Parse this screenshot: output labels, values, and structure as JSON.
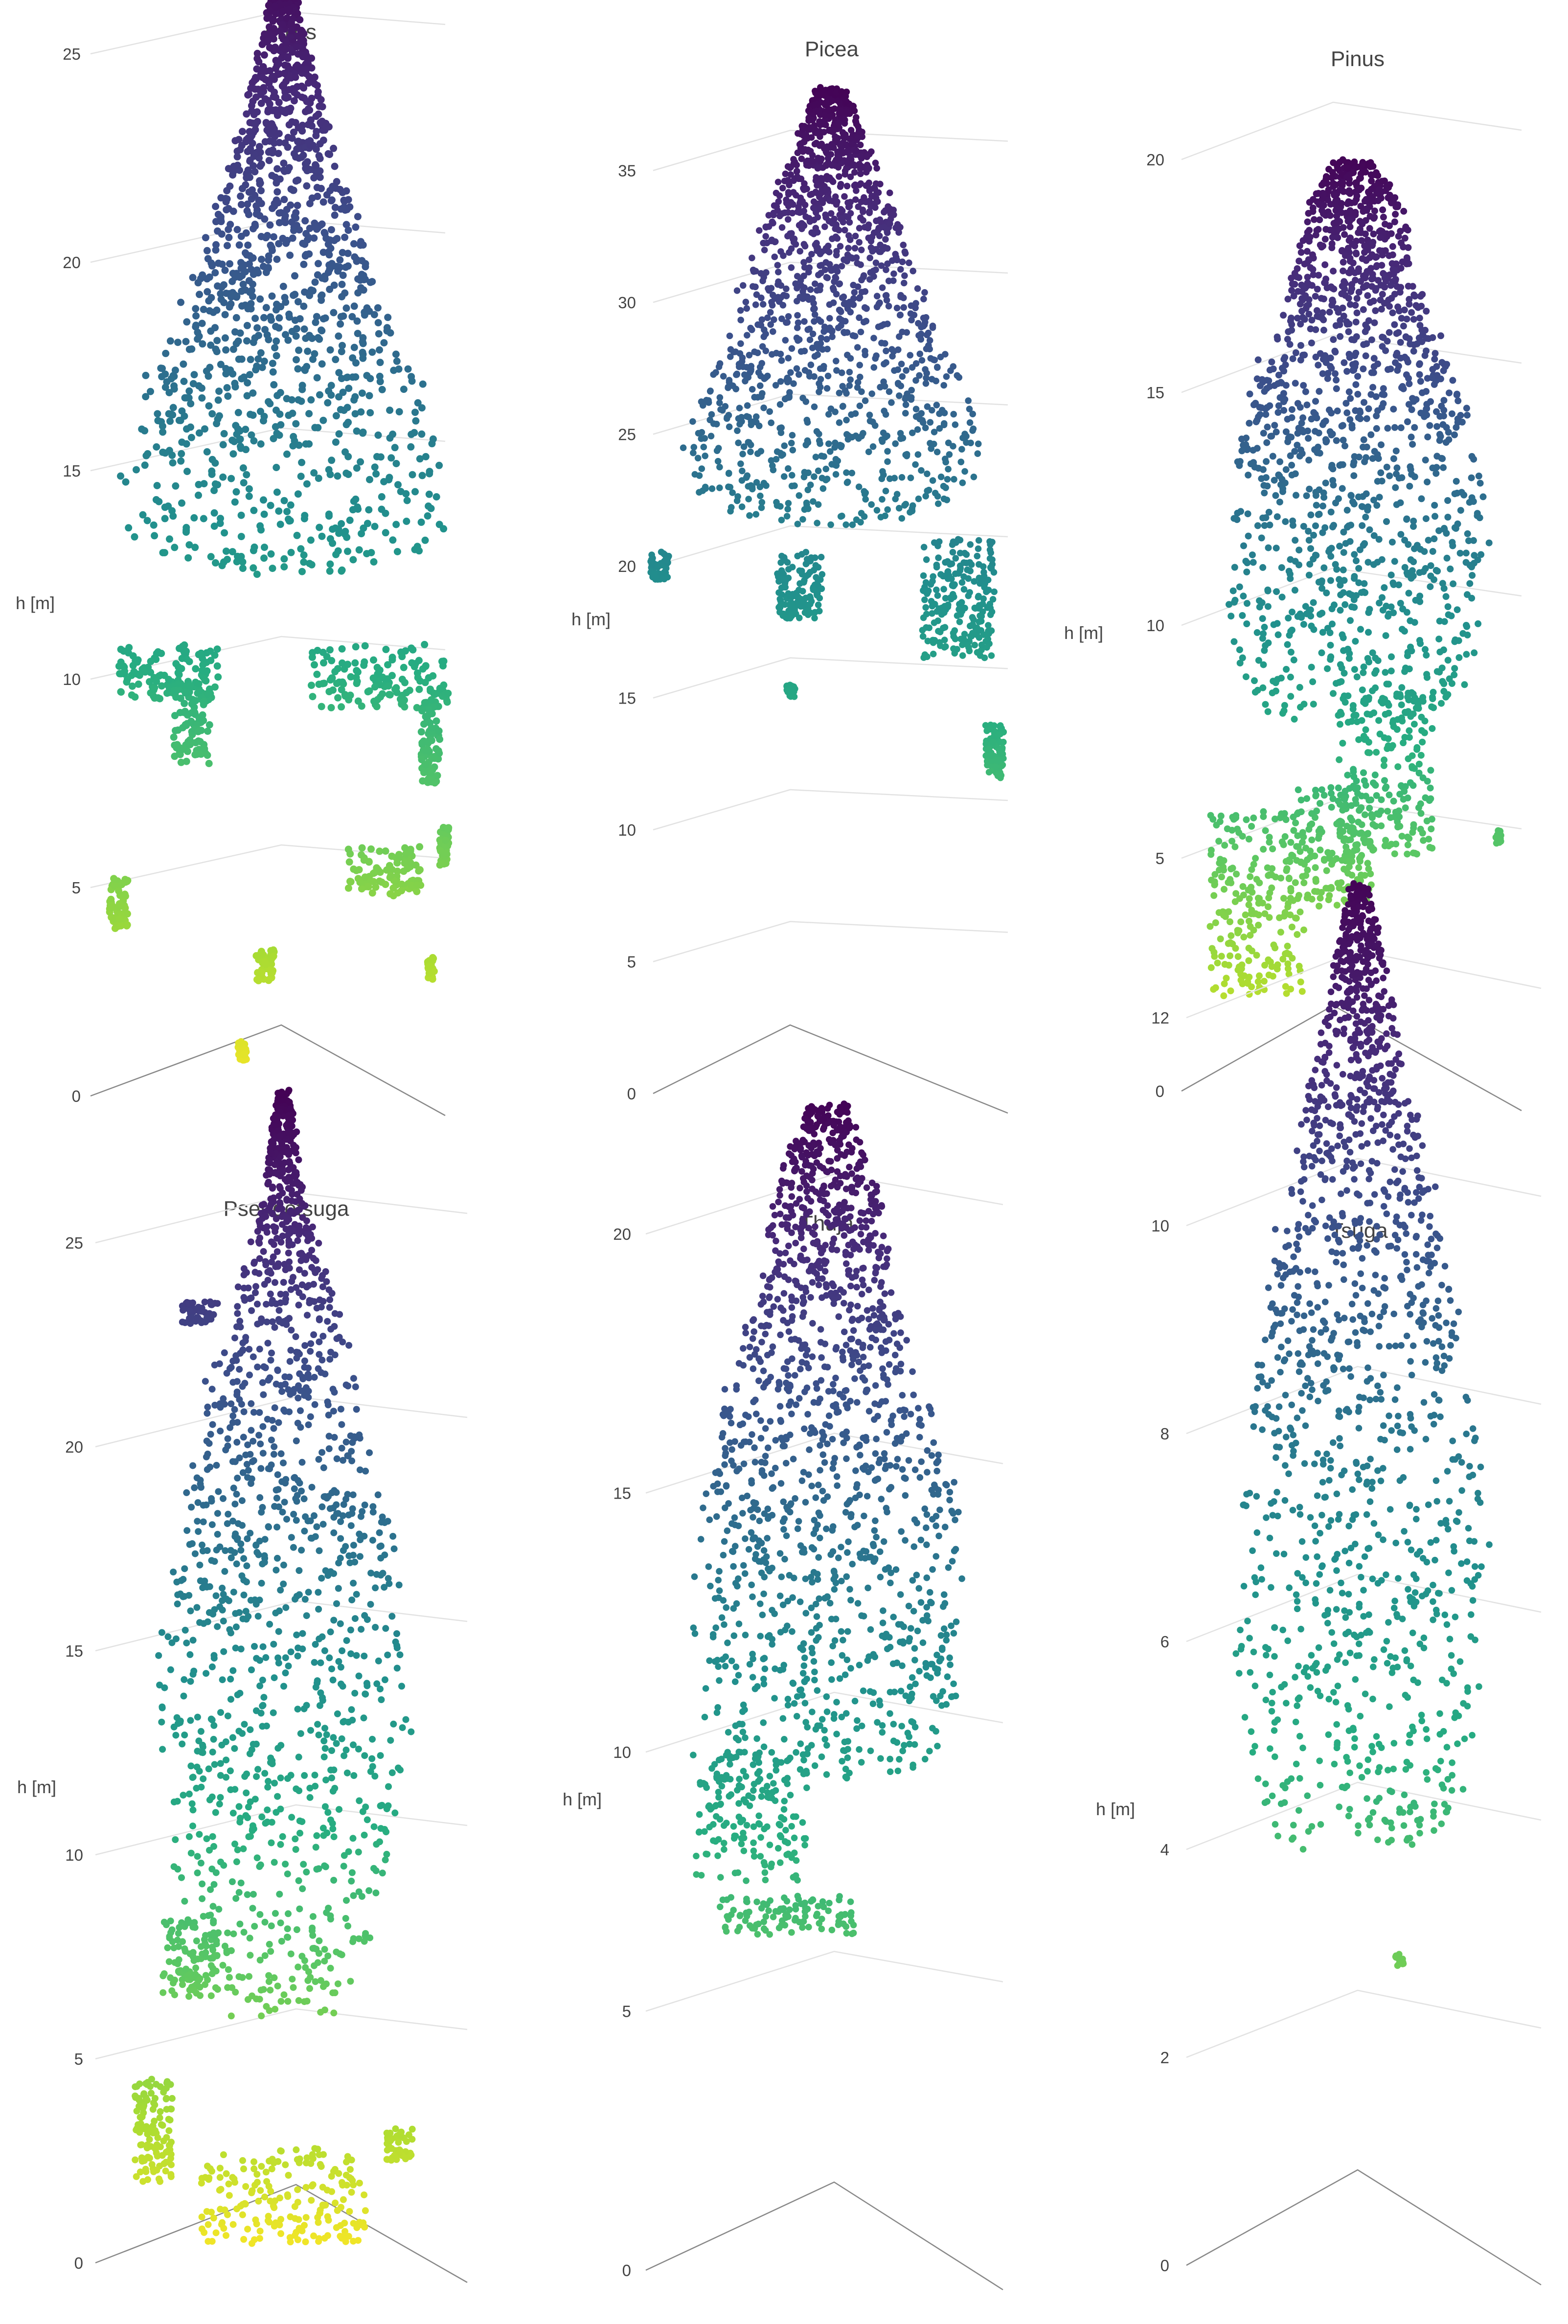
{
  "colors": {
    "colorscale": "viridis",
    "background": "#ffffff",
    "grid": "#e2e2e2",
    "text": "#444444"
  },
  "chart_data": [
    {
      "type": "scatter3d",
      "title": "Abies",
      "zlabel": "h [m]",
      "zlim": [
        0,
        27.5
      ],
      "zticks": [
        0,
        5,
        10,
        15,
        20,
        25
      ],
      "crown_profile": [
        {
          "h": 27.3,
          "r": 0.04
        },
        {
          "h": 25.5,
          "r": 0.12
        },
        {
          "h": 23,
          "r": 0.28
        },
        {
          "h": 21,
          "r": 0.42
        },
        {
          "h": 19,
          "r": 0.6
        },
        {
          "h": 17,
          "r": 0.8
        },
        {
          "h": 15,
          "r": 0.95
        },
        {
          "h": 13,
          "r": 0.85
        },
        {
          "h": 12.5,
          "r": 0.3
        }
      ],
      "clusters": [
        {
          "h": [
            9.5,
            10.8
          ],
          "x": [
            -0.9,
            -0.35
          ]
        },
        {
          "h": [
            8.0,
            10.0
          ],
          "x": [
            -0.6,
            -0.4
          ]
        },
        {
          "h": [
            9.3,
            10.8
          ],
          "x": [
            0.15,
            0.9
          ]
        },
        {
          "h": [
            7.5,
            9.5
          ],
          "x": [
            0.75,
            0.85
          ]
        },
        {
          "h": [
            4.8,
            6.0
          ],
          "x": [
            0.35,
            0.75
          ]
        },
        {
          "h": [
            4.0,
            5.2
          ],
          "x": [
            -0.95,
            -0.85
          ]
        },
        {
          "h": [
            2.8,
            3.5
          ],
          "x": [
            -0.15,
            -0.05
          ]
        },
        {
          "h": [
            0.8,
            1.3
          ],
          "x": [
            -0.25,
            -0.2
          ]
        },
        {
          "h": [
            5.5,
            6.5
          ],
          "x": [
            0.85,
            0.9
          ]
        },
        {
          "h": [
            2.8,
            3.3
          ],
          "x": [
            0.78,
            0.82
          ]
        }
      ]
    },
    {
      "type": "scatter3d",
      "title": "Picea",
      "zlabel": "h [m]",
      "zlim": [
        0,
        38.3
      ],
      "zticks": [
        0,
        5,
        10,
        15,
        20,
        25,
        30,
        35
      ],
      "crown_profile": [
        {
          "h": 38.1,
          "r": 0.1
        },
        {
          "h": 36,
          "r": 0.22
        },
        {
          "h": 33,
          "r": 0.4
        },
        {
          "h": 30,
          "r": 0.55
        },
        {
          "h": 27,
          "r": 0.75
        },
        {
          "h": 24,
          "r": 0.9
        },
        {
          "h": 22.5,
          "r": 0.75
        },
        {
          "h": 21.5,
          "r": 0.3
        }
      ],
      "clusters": [
        {
          "h": [
            18,
            20.5
          ],
          "x": [
            -0.3,
            -0.05
          ]
        },
        {
          "h": [
            16.5,
            21
          ],
          "x": [
            0.5,
            0.9
          ]
        },
        {
          "h": [
            12,
            14
          ],
          "x": [
            0.85,
            0.95
          ]
        },
        {
          "h": [
            19.5,
            20.5
          ],
          "x": [
            -1.0,
            -0.9
          ]
        },
        {
          "h": [
            15,
            15.5
          ],
          "x": [
            -0.25,
            -0.2
          ]
        }
      ]
    },
    {
      "type": "scatter3d",
      "title": "Pinus",
      "zlabel": "h [m]",
      "zlim": [
        0,
        20.2
      ],
      "zticks": [
        0,
        5,
        10,
        15,
        20
      ],
      "crown_profile": [
        {
          "h": 20,
          "r": 0.12
        },
        {
          "h": 19,
          "r": 0.3
        },
        {
          "h": 17,
          "r": 0.42
        },
        {
          "h": 15,
          "r": 0.65
        },
        {
          "h": 13,
          "r": 0.8
        },
        {
          "h": 11,
          "r": 0.8
        },
        {
          "h": 9,
          "r": 0.7
        },
        {
          "h": 8,
          "r": 0.55
        }
      ],
      "clusters": [
        {
          "h": [
            5,
            8.5
          ],
          "x": [
            -0.1,
            0.45
          ]
        },
        {
          "h": [
            2,
            6
          ],
          "x": [
            -0.85,
            -0.3
          ]
        },
        {
          "h": [
            4,
            6.5
          ],
          "x": [
            -0.4,
            0.1
          ]
        },
        {
          "h": [
            5.3,
            5.6
          ],
          "x": [
            0.82,
            0.86
          ]
        }
      ]
    },
    {
      "type": "scatter3d",
      "title": "Pseudotsuga",
      "zlabel": "h [m]",
      "zlim": [
        0,
        28.8
      ],
      "zticks": [
        0,
        5,
        10,
        15,
        20,
        25
      ],
      "crown_profile": [
        {
          "h": 28.7,
          "r": 0.04
        },
        {
          "h": 26,
          "r": 0.12
        },
        {
          "h": 23,
          "r": 0.35
        },
        {
          "h": 20,
          "r": 0.5
        },
        {
          "h": 17,
          "r": 0.65
        },
        {
          "h": 14,
          "r": 0.75
        },
        {
          "h": 11,
          "r": 0.65
        },
        {
          "h": 8,
          "r": 0.55
        },
        {
          "h": 6,
          "r": 0.3
        }
      ],
      "clusters": [
        {
          "h": [
            23,
            23.6
          ],
          "x": [
            -0.55,
            -0.35
          ]
        },
        {
          "h": [
            2,
            4.5
          ],
          "x": [
            -0.8,
            -0.6
          ]
        },
        {
          "h": [
            0.5,
            2.8
          ],
          "x": [
            -0.45,
            0.45
          ]
        },
        {
          "h": [
            2.5,
            3.3
          ],
          "x": [
            0.55,
            0.7
          ]
        },
        {
          "h": [
            6.5,
            8.5
          ],
          "x": [
            -0.65,
            -0.35
          ]
        }
      ]
    },
    {
      "type": "scatter3d",
      "title": "Thuja",
      "zlabel": "h [m]",
      "zlim": [
        0,
        22.7
      ],
      "zticks": [
        0,
        5,
        10,
        15,
        20
      ],
      "crown_profile": [
        {
          "h": 22.5,
          "r": 0.12
        },
        {
          "h": 21,
          "r": 0.3
        },
        {
          "h": 19,
          "r": 0.4
        },
        {
          "h": 17,
          "r": 0.6
        },
        {
          "h": 15,
          "r": 0.75
        },
        {
          "h": 13,
          "r": 0.78
        },
        {
          "h": 11,
          "r": 0.78
        },
        {
          "h": 9.5,
          "r": 0.6
        }
      ],
      "clusters": [
        {
          "h": [
            7.5,
            10
          ],
          "x": [
            -0.75,
            -0.1
          ]
        },
        {
          "h": [
            6.5,
            7.2
          ],
          "x": [
            -0.6,
            0.15
          ]
        }
      ]
    },
    {
      "type": "scatter3d",
      "title": "Tsuga",
      "zlabel": "h [m]",
      "zlim": [
        0,
        13.4
      ],
      "zticks": [
        0,
        2,
        4,
        6,
        8,
        10,
        12
      ],
      "crown_profile": [
        {
          "h": 13.3,
          "r": 0.06
        },
        {
          "h": 12,
          "r": 0.22
        },
        {
          "h": 10.5,
          "r": 0.42
        },
        {
          "h": 9,
          "r": 0.6
        },
        {
          "h": 7.5,
          "r": 0.75
        },
        {
          "h": 6,
          "r": 0.75
        },
        {
          "h": 4.5,
          "r": 0.6
        },
        {
          "h": 4.0,
          "r": 0.5
        }
      ],
      "clusters": [
        {
          "h": [
            2.9,
            3.0
          ],
          "x": [
            0.2,
            0.25
          ]
        }
      ]
    }
  ]
}
